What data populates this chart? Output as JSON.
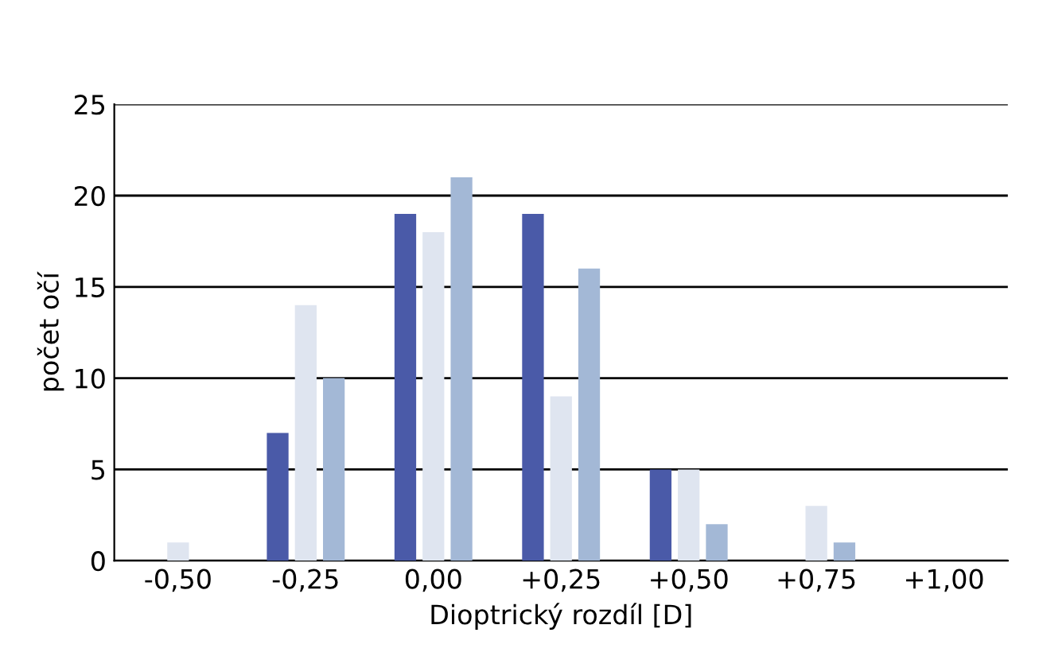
{
  "chart_data": {
    "type": "bar",
    "xlabel": "Dioptrický rozdíl [D]",
    "ylabel": "počet očí",
    "categories": [
      "-0,50",
      "-0,25",
      "0,00",
      "+0,25",
      "+0,50",
      "+0,75",
      "+1,00"
    ],
    "series": [
      {
        "color": "#4a5aa8",
        "values": [
          0,
          7,
          19,
          19,
          5,
          0,
          0
        ]
      },
      {
        "color": "#dfe5f0",
        "values": [
          1,
          14,
          18,
          9,
          5,
          3,
          0
        ]
      },
      {
        "color": "#a3b8d6",
        "values": [
          0,
          10,
          21,
          16,
          2,
          1,
          0
        ]
      }
    ],
    "ylim": [
      0,
      25
    ],
    "yticks": [
      0,
      5,
      10,
      15,
      20,
      25
    ],
    "grid": "y"
  }
}
